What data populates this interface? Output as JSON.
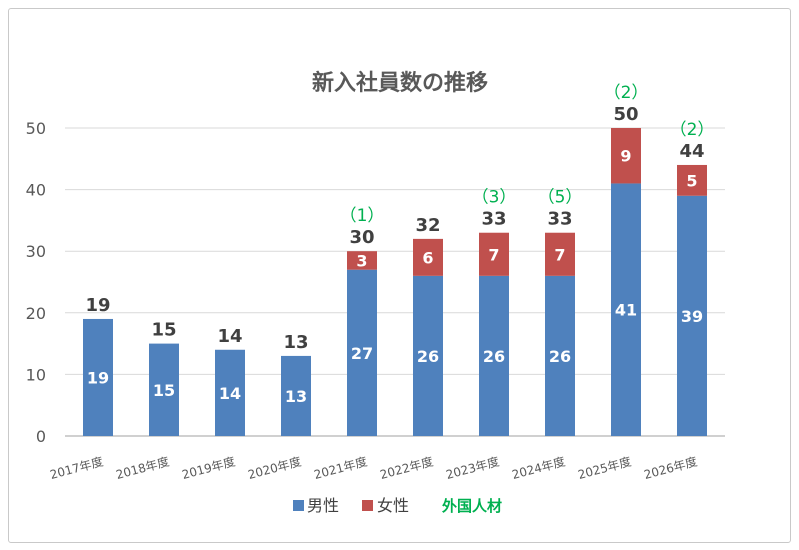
{
  "chart_data": {
    "type": "bar",
    "stacked": true,
    "title": "新入社員数の推移",
    "categories": [
      "2017年度",
      "2018年度",
      "2019年度",
      "2020年度",
      "2021年度",
      "2022年度",
      "2023年度",
      "2024年度",
      "2025年度",
      "2026年度"
    ],
    "series": [
      {
        "name": "男性",
        "color": "#4f81bd",
        "values": [
          19,
          15,
          14,
          13,
          27,
          26,
          26,
          26,
          41,
          39
        ]
      },
      {
        "name": "女性",
        "color": "#c0504d",
        "values": [
          0,
          0,
          0,
          0,
          3,
          6,
          7,
          7,
          9,
          5
        ]
      }
    ],
    "totals": [
      19,
      15,
      14,
      13,
      30,
      32,
      33,
      33,
      50,
      44
    ],
    "foreign_talent": {
      "name": "外国人材",
      "color": "#00b050",
      "labels": [
        null,
        null,
        null,
        null,
        "（1）",
        null,
        "（3）",
        "（5）",
        "（2）",
        "（2）"
      ]
    },
    "ylim": [
      0,
      50
    ],
    "yticks": [
      0,
      10,
      20,
      30,
      40,
      50
    ],
    "grid": true,
    "legend": "bottom"
  }
}
